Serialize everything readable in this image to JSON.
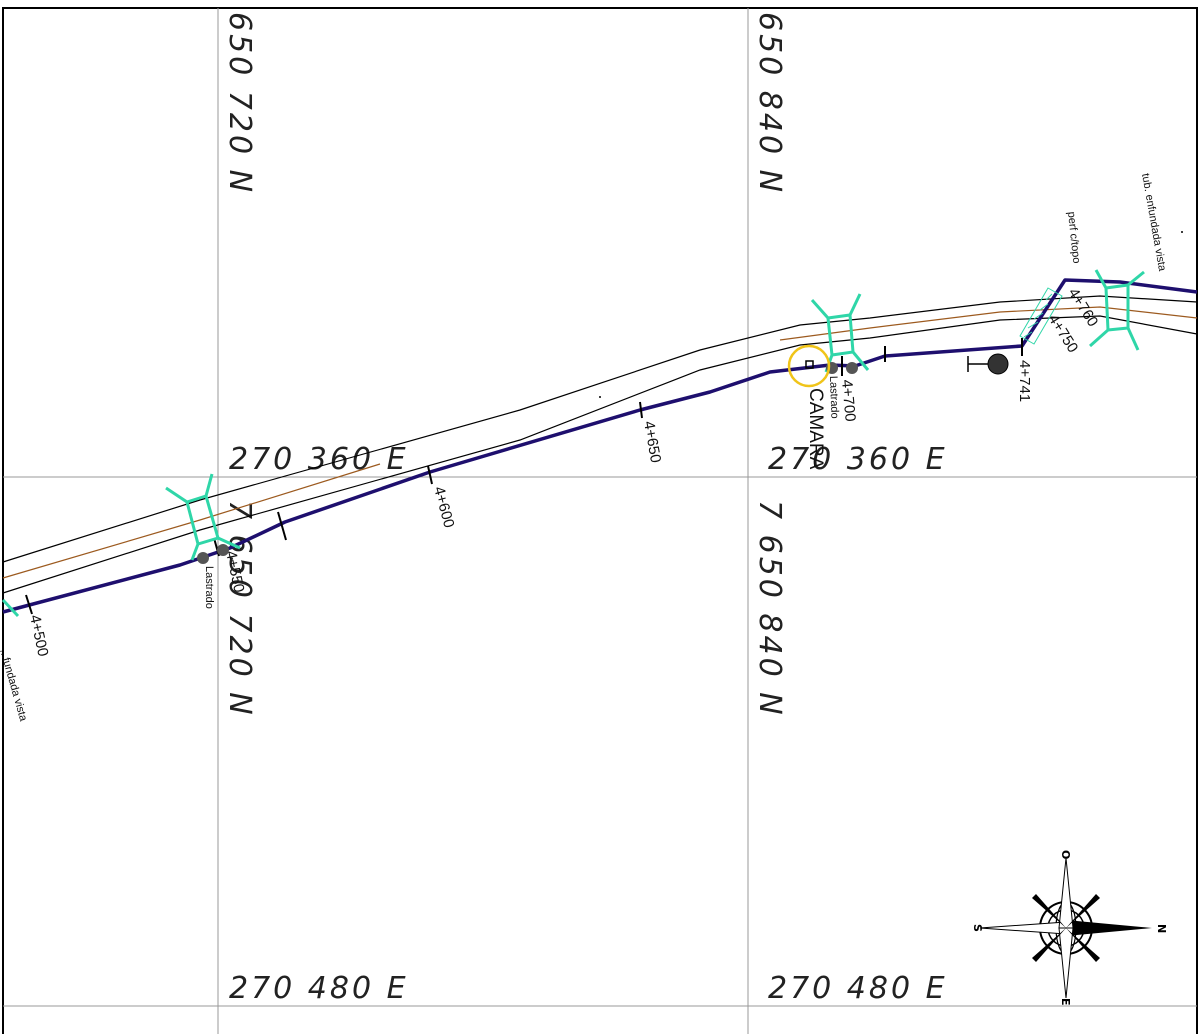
{
  "grid": {
    "northing_top_left": "650  720  N",
    "northing_top_right": "650  840  N",
    "northing_bottom_left": "7  650  720  N",
    "northing_bottom_right": "7  650  840  N",
    "easting_mid_left": "270  360  E",
    "easting_mid_right": "270  360  E",
    "easting_bottom_left": "270  480  E",
    "easting_bottom_right": "270  480  E"
  },
  "stations": {
    "s4500": "4+500",
    "s4550": "4+550",
    "s4600": "4+600",
    "s4650": "4+650",
    "s4700": "4+700",
    "s4741": "4+741",
    "s4750": "4+750",
    "s4760": "4+760"
  },
  "notes": {
    "camara": "CAMARA",
    "lastrado_left": "Lastrado",
    "lastrado_right": "Lastrado",
    "tub_enfundada_right": "tub. enfundada vista",
    "tub_enfundada_left": "...fundada vista",
    "perf_topo": "perf c/topo"
  },
  "compass": {
    "north": "N",
    "south": "S",
    "east": "E",
    "west": "O"
  },
  "colors": {
    "pipeline": "#1e0f6e",
    "road_axis": "#9c5a1f",
    "crossing": "#2fd6a8",
    "camara_circle": "#f0c419",
    "grid": "#999999",
    "valve": "#555555"
  }
}
